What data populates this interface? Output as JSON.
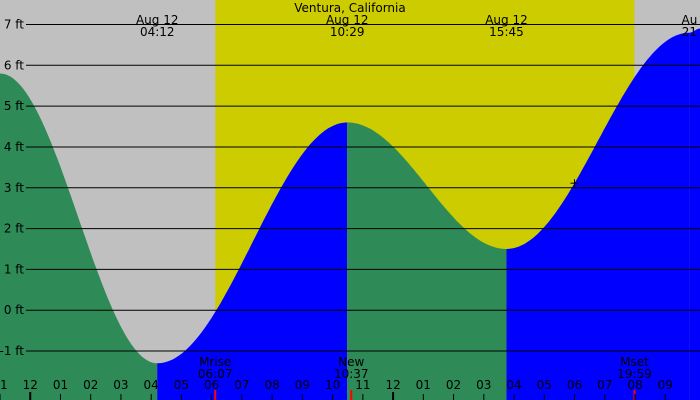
{
  "chart_data": {
    "type": "area",
    "title": "Ventura, California",
    "units": "ft",
    "y_ticks": [
      "7 ft",
      "6 ft",
      "5 ft",
      "4 ft",
      "3 ft",
      "2 ft",
      "1 ft",
      "0 ft",
      "-1 ft"
    ],
    "y_values": [
      7,
      6,
      5,
      4,
      3,
      2,
      1,
      0,
      -1
    ],
    "ylim": [
      -2.2,
      7.6
    ],
    "x_range_hours": [
      -1.0,
      22.15
    ],
    "hour_labels": [
      {
        "h": -1,
        "label": "11"
      },
      {
        "h": 0,
        "label": "12"
      },
      {
        "h": 1,
        "label": "01"
      },
      {
        "h": 2,
        "label": "02"
      },
      {
        "h": 3,
        "label": "03"
      },
      {
        "h": 4,
        "label": "04"
      },
      {
        "h": 5,
        "label": "05"
      },
      {
        "h": 6,
        "label": "06"
      },
      {
        "h": 7,
        "label": "07"
      },
      {
        "h": 8,
        "label": "08"
      },
      {
        "h": 9,
        "label": "09"
      },
      {
        "h": 10,
        "label": "10"
      },
      {
        "h": 11,
        "label": "11"
      },
      {
        "h": 12,
        "label": "12"
      },
      {
        "h": 13,
        "label": "01"
      },
      {
        "h": 14,
        "label": "02"
      },
      {
        "h": 15,
        "label": "03"
      },
      {
        "h": 16,
        "label": "04"
      },
      {
        "h": 17,
        "label": "05"
      },
      {
        "h": 18,
        "label": "06"
      },
      {
        "h": 19,
        "label": "07"
      },
      {
        "h": 20,
        "label": "08"
      },
      {
        "h": 21,
        "label": "09"
      }
    ],
    "tide_events": [
      {
        "h": 4.2,
        "date": "Aug 12",
        "time": "04:12",
        "height": -1.3,
        "kind": "low"
      },
      {
        "h": 10.483,
        "date": "Aug 12",
        "time": "10:29",
        "height": 4.6,
        "kind": "high"
      },
      {
        "h": 15.75,
        "date": "Aug 12",
        "time": "15:45",
        "height": 1.5,
        "kind": "low"
      },
      {
        "h": 21.8,
        "date": "Au",
        "time": "21",
        "height": 6.8,
        "kind": "high"
      }
    ],
    "curve_start": {
      "h": -1.0,
      "height": 5.8
    },
    "curve_end": {
      "h": 22.15,
      "height": 6.9
    },
    "daylight": {
      "start_h": 6.12,
      "end_h": 19.98
    },
    "moon_events": [
      {
        "h": 6.117,
        "label": "Mrise",
        "time": "06:07"
      },
      {
        "h": 10.617,
        "label": "New",
        "time": "10:37"
      },
      {
        "h": 19.983,
        "label": "Mset",
        "time": "19:59"
      }
    ],
    "current_marker_h": 18.0,
    "colors": {
      "night": "#c0c0c0",
      "day": "#cccc00",
      "falling_tide": "#2e8b57",
      "rising_tide": "#0000ff",
      "grid": "#000000",
      "moon_marker": "#ff0000"
    }
  }
}
